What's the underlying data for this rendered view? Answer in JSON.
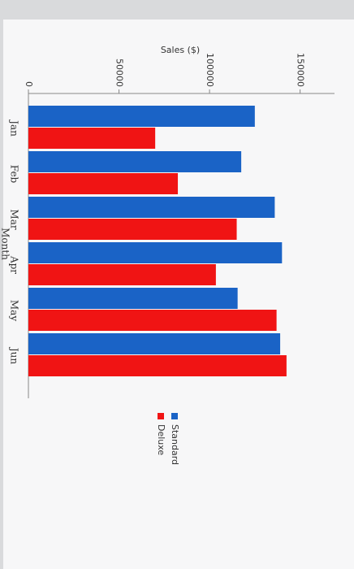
{
  "chart_data": {
    "type": "bar",
    "orientation": "horizontal",
    "title": "Sales ($)",
    "xlabel": "Month",
    "categories": [
      "Jan",
      "Feb",
      "Mar",
      "Apr",
      "May",
      "Jun"
    ],
    "series": [
      {
        "name": "Standard",
        "color": "#1a63c6",
        "values": [
          125000,
          117500,
          136000,
          140000,
          115500,
          139000
        ]
      },
      {
        "name": "Deluxe",
        "color": "#f01414",
        "values": [
          70000,
          82500,
          115000,
          103500,
          137000,
          142500
        ]
      }
    ],
    "ylim": [
      0,
      169000
    ],
    "yticks": [
      0,
      50000,
      100000,
      150000
    ],
    "legend": "bottom-right"
  }
}
